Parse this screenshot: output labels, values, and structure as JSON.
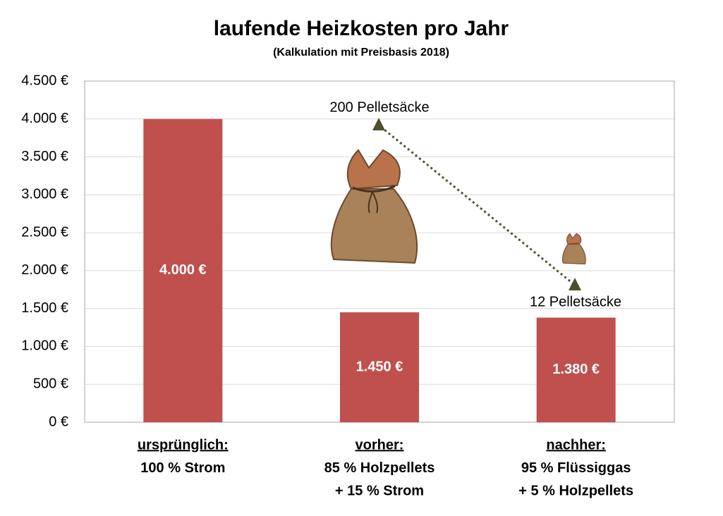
{
  "chart_data": {
    "type": "bar",
    "title": "laufende Heizkosten pro Jahr",
    "subtitle": "(Kalkulation mit Preisbasis 2018)",
    "categories": [
      [
        "ursprünglich:",
        "100 % Strom"
      ],
      [
        "vorher:",
        "85 % Holzpellets",
        "+ 15 % Strom"
      ],
      [
        "nachher:",
        "95 % Flüssiggas",
        "+ 5 % Holzpellets"
      ]
    ],
    "values": [
      4000,
      1450,
      1380
    ],
    "value_labels": [
      "4.000 €",
      "1.450 €",
      "1.380 €"
    ],
    "color": "#c0504d",
    "ylim": [
      0,
      4500
    ],
    "yticks": [
      {
        "value": 0,
        "label": "0 €"
      },
      {
        "value": 500,
        "label": "500 €"
      },
      {
        "value": 1000,
        "label": "1.000 €"
      },
      {
        "value": 1500,
        "label": "1.500 €"
      },
      {
        "value": 2000,
        "label": "2.000 €"
      },
      {
        "value": 2500,
        "label": "2.500 €"
      },
      {
        "value": 3000,
        "label": "3.000 €"
      },
      {
        "value": 3500,
        "label": "3.500 €"
      },
      {
        "value": 4000,
        "label": "4.000 €"
      },
      {
        "value": 4500,
        "label": "4.500 €"
      }
    ],
    "grid": true,
    "annotations": [
      "200 Pelletsäcke",
      "12 Pelletsäcke"
    ]
  }
}
